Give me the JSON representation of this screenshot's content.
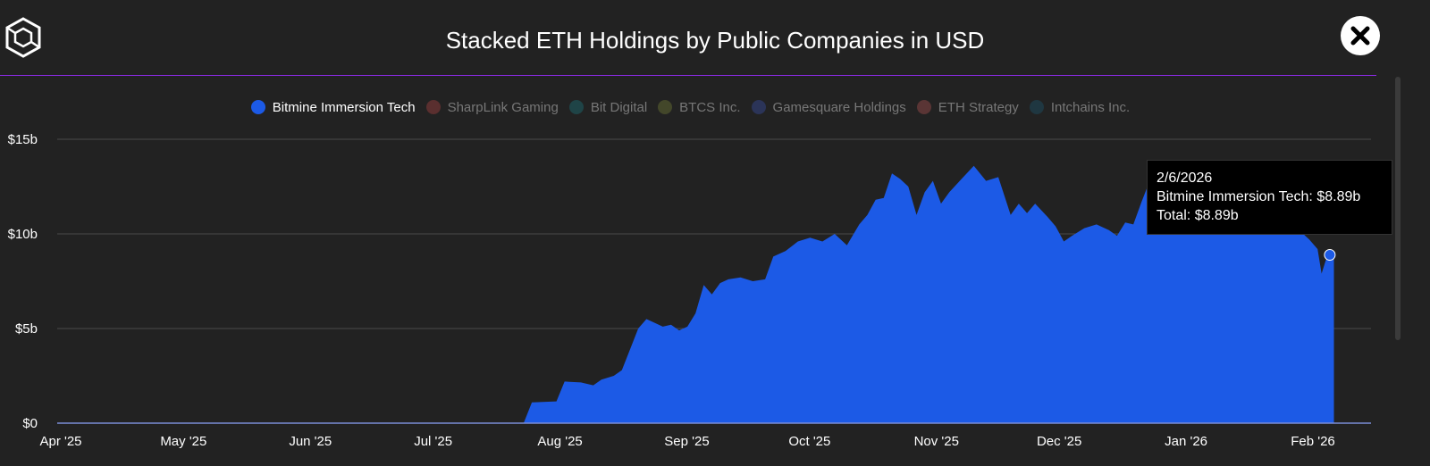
{
  "header": {
    "title": "Stacked ETH Holdings by Public Companies in USD",
    "logo_icon": "cube-logo-icon",
    "close_icon": "close-icon"
  },
  "legend": [
    {
      "name": "Bitmine Immersion Tech",
      "color": "#1c5ae6",
      "active": true
    },
    {
      "name": "SharpLink Gaming",
      "color": "#5a2f2f",
      "active": false
    },
    {
      "name": "Bit Digital",
      "color": "#1f4447",
      "active": false
    },
    {
      "name": "BTCS Inc.",
      "color": "#43472a",
      "active": false
    },
    {
      "name": "Gamesquare Holdings",
      "color": "#2b3458",
      "active": false
    },
    {
      "name": "ETH Strategy",
      "color": "#5a3535",
      "active": false
    },
    {
      "name": "Intchains Inc.",
      "color": "#1f3741",
      "active": false
    }
  ],
  "tooltip": {
    "date": "2/6/2026",
    "series_line": "Bitmine Immersion Tech: $8.89b",
    "total_line": "Total: $8.89b"
  },
  "chart_data": {
    "type": "area",
    "stacked": true,
    "title": "Stacked ETH Holdings by Public Companies in USD",
    "xlabel": "",
    "ylabel": "",
    "ylim": [
      0,
      15
    ],
    "y_unit": "billion USD",
    "y_ticks": [
      0,
      5,
      10,
      15
    ],
    "y_tick_labels": [
      "$0",
      "$5b",
      "$10b",
      "$15b"
    ],
    "x_tick_dates": [
      "2025-04-01",
      "2025-05-01",
      "2025-06-01",
      "2025-07-01",
      "2025-08-01",
      "2025-09-01",
      "2025-10-01",
      "2025-11-01",
      "2025-12-01",
      "2026-01-01",
      "2026-02-01"
    ],
    "x_tick_labels": [
      "Apr '25",
      "May '25",
      "Jun '25",
      "Jul '25",
      "Aug '25",
      "Sep '25",
      "Oct '25",
      "Nov '25",
      "Dec '25",
      "Jan '26",
      "Feb '26"
    ],
    "grid": true,
    "legend_position": "top",
    "highlighted_point": {
      "x": "2026-02-06",
      "y": 8.89
    },
    "series": [
      {
        "name": "Bitmine Immersion Tech",
        "color": "#1c5ae6",
        "points": [
          [
            "2025-04-01",
            0
          ],
          [
            "2025-07-24",
            0
          ],
          [
            "2025-07-26",
            1.1
          ],
          [
            "2025-08-01",
            1.15
          ],
          [
            "2025-08-03",
            2.2
          ],
          [
            "2025-08-07",
            2.15
          ],
          [
            "2025-08-10",
            2.0
          ],
          [
            "2025-08-12",
            2.3
          ],
          [
            "2025-08-15",
            2.5
          ],
          [
            "2025-08-17",
            2.8
          ],
          [
            "2025-08-19",
            3.9
          ],
          [
            "2025-08-21",
            5.0
          ],
          [
            "2025-08-23",
            5.5
          ],
          [
            "2025-08-25",
            5.3
          ],
          [
            "2025-08-27",
            5.1
          ],
          [
            "2025-08-29",
            5.2
          ],
          [
            "2025-08-31",
            4.9
          ],
          [
            "2025-09-02",
            5.1
          ],
          [
            "2025-09-04",
            5.8
          ],
          [
            "2025-09-06",
            7.3
          ],
          [
            "2025-09-08",
            6.8
          ],
          [
            "2025-09-10",
            7.4
          ],
          [
            "2025-09-12",
            7.6
          ],
          [
            "2025-09-15",
            7.7
          ],
          [
            "2025-09-18",
            7.5
          ],
          [
            "2025-09-21",
            7.6
          ],
          [
            "2025-09-23",
            8.8
          ],
          [
            "2025-09-26",
            9.1
          ],
          [
            "2025-09-29",
            9.6
          ],
          [
            "2025-10-02",
            9.8
          ],
          [
            "2025-10-05",
            9.6
          ],
          [
            "2025-10-08",
            10.0
          ],
          [
            "2025-10-11",
            9.4
          ],
          [
            "2025-10-14",
            10.5
          ],
          [
            "2025-10-16",
            11.0
          ],
          [
            "2025-10-18",
            11.8
          ],
          [
            "2025-10-20",
            11.9
          ],
          [
            "2025-10-22",
            13.2
          ],
          [
            "2025-10-24",
            12.9
          ],
          [
            "2025-10-26",
            12.5
          ],
          [
            "2025-10-28",
            11.0
          ],
          [
            "2025-10-30",
            12.2
          ],
          [
            "2025-11-01",
            12.8
          ],
          [
            "2025-11-03",
            11.6
          ],
          [
            "2025-11-05",
            12.2
          ],
          [
            "2025-11-08",
            12.9
          ],
          [
            "2025-11-11",
            13.6
          ],
          [
            "2025-11-14",
            12.8
          ],
          [
            "2025-11-17",
            13.0
          ],
          [
            "2025-11-20",
            11.0
          ],
          [
            "2025-11-22",
            11.6
          ],
          [
            "2025-11-24",
            11.1
          ],
          [
            "2025-11-26",
            11.6
          ],
          [
            "2025-11-29",
            10.9
          ],
          [
            "2025-12-01",
            10.4
          ],
          [
            "2025-12-03",
            9.6
          ],
          [
            "2025-12-05",
            9.9
          ],
          [
            "2025-12-08",
            10.3
          ],
          [
            "2025-12-11",
            10.5
          ],
          [
            "2025-12-14",
            10.2
          ],
          [
            "2025-12-16",
            9.9
          ],
          [
            "2025-12-18",
            10.6
          ],
          [
            "2025-12-20",
            10.5
          ],
          [
            "2025-12-22",
            11.7
          ],
          [
            "2025-12-24",
            12.8
          ],
          [
            "2025-12-27",
            12.0
          ],
          [
            "2025-12-30",
            12.3
          ],
          [
            "2026-01-02",
            12.0
          ],
          [
            "2026-01-05",
            12.5
          ],
          [
            "2026-01-08",
            12.8
          ],
          [
            "2026-01-11",
            13.2
          ],
          [
            "2026-01-14",
            13.6
          ],
          [
            "2026-01-17",
            13.8
          ],
          [
            "2026-01-20",
            12.5
          ],
          [
            "2026-01-23",
            11.6
          ],
          [
            "2026-01-26",
            11.0
          ],
          [
            "2026-01-29",
            10.3
          ],
          [
            "2026-02-01",
            9.7
          ],
          [
            "2026-02-03",
            9.2
          ],
          [
            "2026-02-04",
            7.9
          ],
          [
            "2026-02-05",
            8.6
          ],
          [
            "2026-02-06",
            8.89
          ],
          [
            "2026-02-07",
            8.9
          ]
        ]
      }
    ]
  }
}
